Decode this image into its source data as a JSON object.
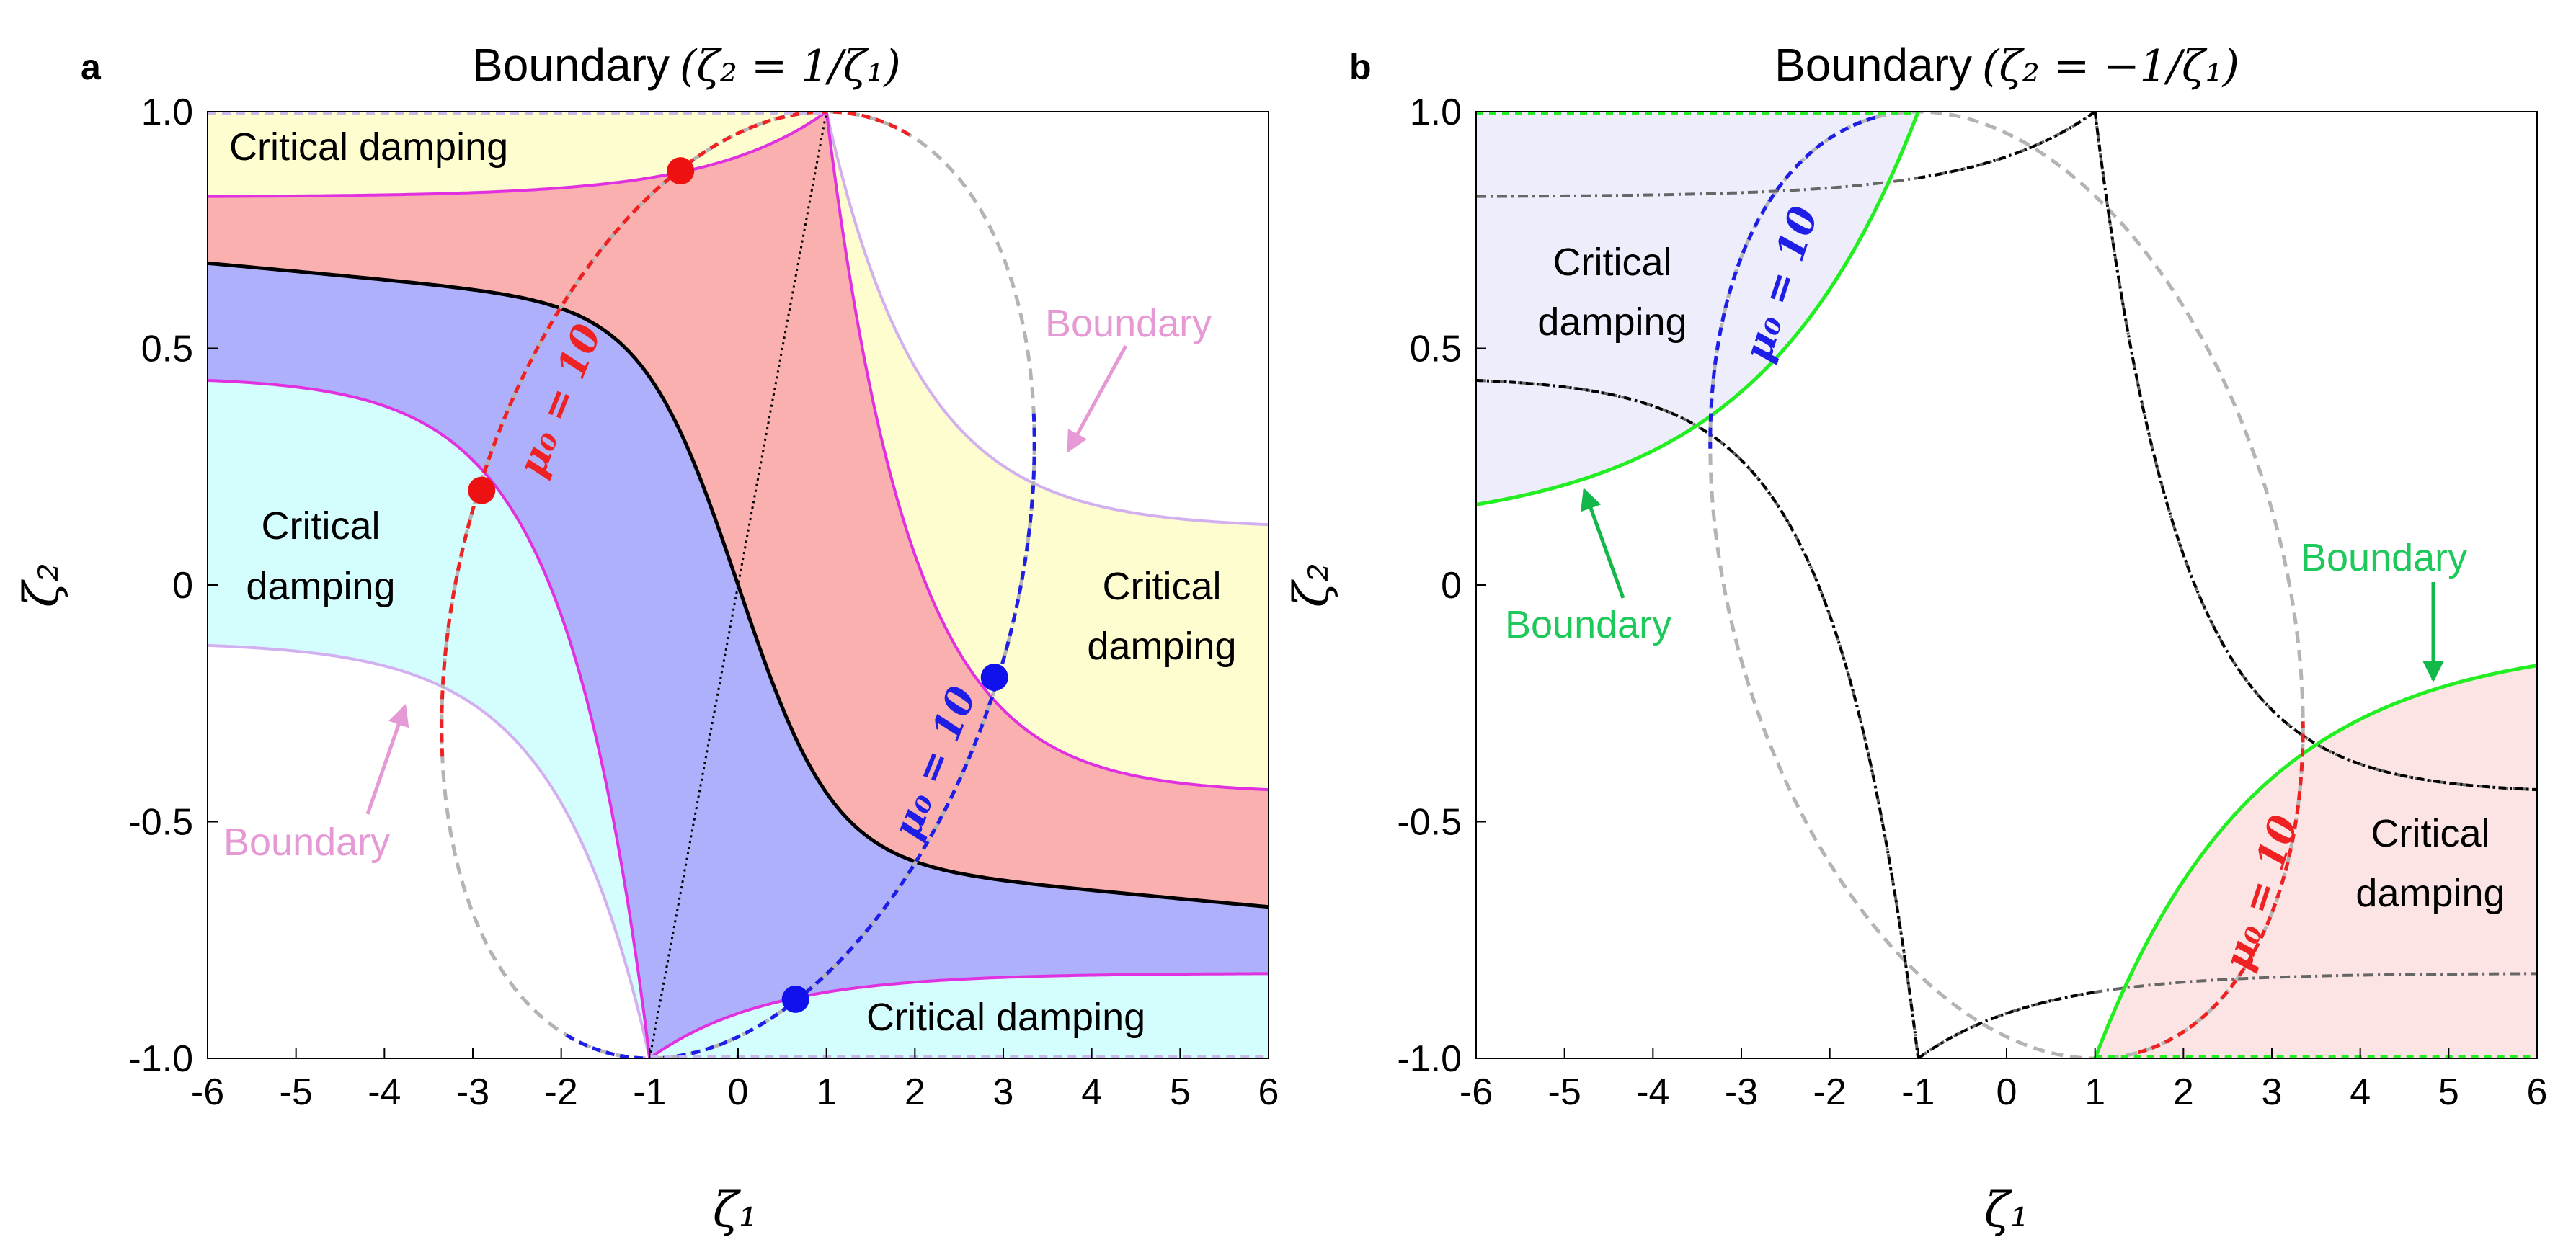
{
  "chart_data": [
    {
      "panel": "a",
      "type": "line",
      "title": "Boundary (ζ₂ = 1/ζ₁)",
      "title_main": "Boundary",
      "title_math": "(ζ₂ = 1/ζ₁)",
      "xlabel": "ζ₁",
      "ylabel": "ζ₂",
      "xlim": [
        -6,
        6
      ],
      "ylim": [
        -1,
        1
      ],
      "xticks": [
        "-6",
        "-5",
        "-4",
        "-3",
        "-2",
        "-1",
        "0",
        "1",
        "2",
        "3",
        "4",
        "5",
        "6"
      ],
      "yticks": [
        "1.0",
        "0.5",
        "0",
        "-0.5",
        "-1.0"
      ],
      "grid": false,
      "mu_label": "μ₀ = 10",
      "region_labels": {
        "top": "Critical damping",
        "bottom": "Critical damping",
        "left": [
          "Critical",
          "damping"
        ],
        "right": [
          "Critical",
          "damping"
        ]
      },
      "boundary_labels": [
        "Boundary",
        "Boundary"
      ],
      "marked_points": [
        {
          "x": -0.65,
          "y": 0.875,
          "color": "red"
        },
        {
          "x": -2.9,
          "y": 0.2,
          "color": "red"
        },
        {
          "x": 2.9,
          "y": -0.195,
          "color": "blue"
        },
        {
          "x": 0.65,
          "y": -0.875,
          "color": "blue"
        }
      ],
      "colors": {
        "yellow": "#fdfdd0",
        "red_fill": "#f9b0ae",
        "blue_fill": "#aeb0fb",
        "cyan_fill": "#d4fdfd",
        "magenta": "#e030e0",
        "lavender": "#d2b0f0",
        "boundary_text": "#e59ad5"
      }
    },
    {
      "panel": "b",
      "type": "line",
      "title": "Boundary (ζ₂ = −1/ζ₁)",
      "title_main": "Boundary",
      "title_math": "(ζ₂ = −1/ζ₁)",
      "xlabel": "ζ₁",
      "ylabel": "ζ₂",
      "xlim": [
        -6,
        6
      ],
      "ylim": [
        -1,
        1
      ],
      "xticks": [
        "-6",
        "-5",
        "-4",
        "-3",
        "-2",
        "-1",
        "0",
        "1",
        "2",
        "3",
        "4",
        "5",
        "6"
      ],
      "yticks": [
        "1.0",
        "0.5",
        "0",
        "-0.5",
        "-1.0"
      ],
      "grid": false,
      "mu_label": "μ₀ = 10",
      "region_labels": {
        "upper_left": [
          "Critical",
          "damping"
        ],
        "lower_right": [
          "Critical",
          "damping"
        ]
      },
      "boundary_labels": [
        "Boundary",
        "Boundary"
      ],
      "colors": {
        "lavender_fill": "#ededfc",
        "pink_fill": "#fde4e4",
        "green": "#22ee22",
        "boundary_text": "#1fc85a"
      }
    }
  ]
}
